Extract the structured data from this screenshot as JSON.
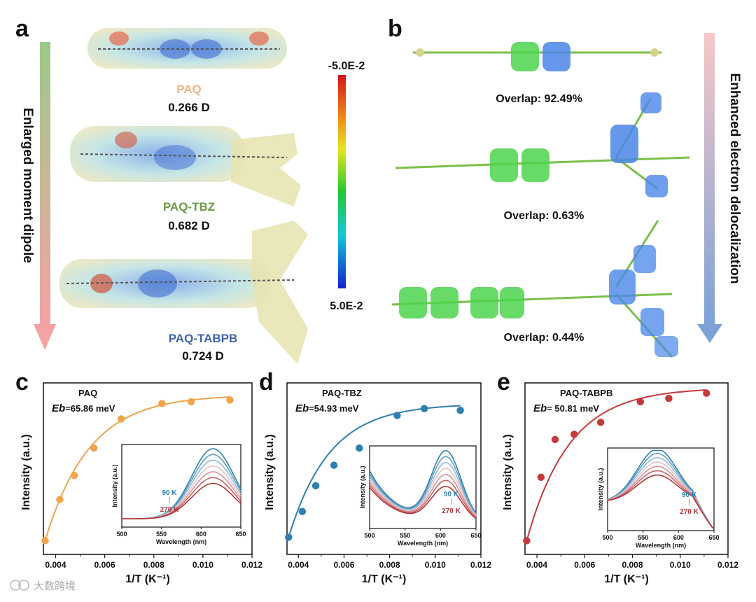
{
  "panel_a": {
    "label": "a",
    "arrow_text": "Enlarged moment dipole",
    "scale_top": "-5.0E-2",
    "scale_bottom": "5.0E-2",
    "molecules": [
      {
        "name": "PAQ",
        "dipole": "0.266 D",
        "color": "#f0b68a"
      },
      {
        "name": "PAQ-TBZ",
        "dipole": "0.682 D",
        "color": "#6c9a47"
      },
      {
        "name": "PAQ-TABPB",
        "dipole": "0.724 D",
        "color": "#3f63ac"
      }
    ]
  },
  "panel_b": {
    "label": "b",
    "arrow_text": "Enhanced electron delocalization",
    "overlaps": [
      "Overlap: 92.49%",
      "Overlap: 0.63%",
      "Overlap: 0.44%"
    ]
  },
  "chart_data": [
    {
      "label": "c",
      "type": "scatter",
      "title": "PAQ",
      "eb_symbol": "Eb",
      "eb_text": "=65.86 meV",
      "color": "#f0a44c",
      "xlabel": "1/T (K⁻¹)",
      "ylabel": "Intensity (a.u.)",
      "xlim": [
        0.0035,
        0.012
      ],
      "xticks": [
        "0.004",
        "0.006",
        "0.008",
        "0.010",
        "0.012"
      ],
      "x": [
        0.00357,
        0.00417,
        0.00476,
        0.00556,
        0.00667,
        0.00833,
        0.00952,
        0.0111
      ],
      "y": [
        0.08,
        0.32,
        0.46,
        0.62,
        0.79,
        0.88,
        0.89,
        0.9
      ],
      "inset": {
        "xlabel": "Wavelength (nm)",
        "ylabel": "Intensity (a.u.)",
        "xticks": [
          "500",
          "550",
          "600",
          "650"
        ],
        "temp_high": "90 K",
        "temp_low": "270 K",
        "peak": 615
      }
    },
    {
      "label": "d",
      "type": "scatter",
      "title": "PAQ-TBZ",
      "eb_symbol": "Eb",
      "eb_text": "=54.93 meV",
      "color": "#2e7fb3",
      "xlabel": "1/T (K⁻¹)",
      "ylabel": "Intensity (a.u.)",
      "xlim": [
        0.0035,
        0.012
      ],
      "xticks": [
        "0.004",
        "0.006",
        "0.008",
        "0.010",
        "0.012"
      ],
      "x": [
        0.00357,
        0.00417,
        0.00476,
        0.00556,
        0.00667,
        0.00833,
        0.00952,
        0.0111
      ],
      "y": [
        0.1,
        0.25,
        0.4,
        0.52,
        0.62,
        0.81,
        0.85,
        0.84
      ],
      "inset": {
        "xlabel": "Wavelength (nm)",
        "ylabel": "Intensity (a.u.)",
        "xticks": [
          "500",
          "550",
          "600",
          "650"
        ],
        "temp_high": "90 K",
        "temp_low": "270 K",
        "peak": 608
      }
    },
    {
      "label": "e",
      "type": "scatter",
      "title": "PAQ-TABPB",
      "eb_symbol": "Eb",
      "eb_text": "= 50.81 meV",
      "color": "#c7393b",
      "xlabel": "1/T (K⁻¹)",
      "ylabel": "Intensity (a.u.)",
      "xlim": [
        0.0035,
        0.012
      ],
      "xticks": [
        "0.004",
        "0.006",
        "0.008",
        "0.010",
        "0.012"
      ],
      "x": [
        0.00357,
        0.00417,
        0.00476,
        0.00556,
        0.00667,
        0.00833,
        0.00952,
        0.0111
      ],
      "y": [
        0.08,
        0.45,
        0.67,
        0.7,
        0.77,
        0.89,
        0.91,
        0.94
      ],
      "inset": {
        "xlabel": "Wavelength (nm)",
        "ylabel": "Intensity (a.u.)",
        "xticks": [
          "500",
          "550",
          "600",
          "650"
        ],
        "temp_high": "90 K",
        "temp_low": "270 K",
        "peak": 570
      }
    }
  ],
  "watermark": "大数跨境"
}
